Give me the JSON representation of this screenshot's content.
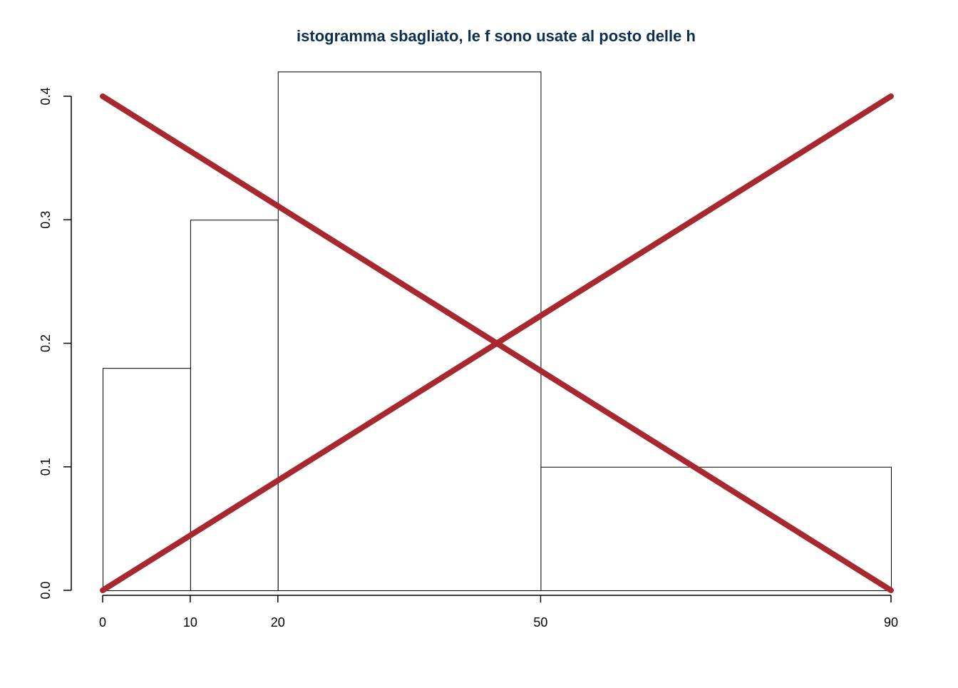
{
  "chart_data": {
    "type": "bar",
    "title": "istogramma sbagliato, le f sono usate al posto delle h",
    "xlabel": "",
    "ylabel": "",
    "bins": [
      {
        "from": 0,
        "to": 10,
        "value": 0.18
      },
      {
        "from": 10,
        "to": 20,
        "value": 0.3
      },
      {
        "from": 20,
        "to": 50,
        "value": 0.42
      },
      {
        "from": 50,
        "to": 90,
        "value": 0.1
      }
    ],
    "x_ticks": [
      "0",
      "10",
      "20",
      "50",
      "90"
    ],
    "y_ticks": [
      "0.0",
      "0.1",
      "0.2",
      "0.3",
      "0.4"
    ],
    "xlim": [
      0,
      90
    ],
    "ylim": [
      0,
      0.4
    ],
    "grid": false,
    "cross_lines": [
      {
        "x": [
          0,
          90
        ],
        "y": [
          0.4,
          0.0
        ]
      },
      {
        "x": [
          0,
          90
        ],
        "y": [
          0.0,
          0.4
        ]
      }
    ],
    "colors": {
      "title": "#0c2f4f",
      "bar_fill": "#ffffff",
      "bar_stroke": "#000000",
      "cross": "#a8282f",
      "axis": "#000000"
    }
  }
}
